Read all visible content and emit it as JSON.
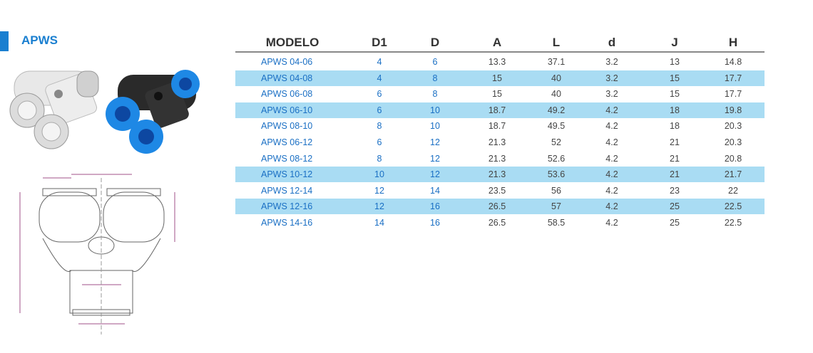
{
  "header": {
    "title": "APWS"
  },
  "table": {
    "columns": [
      "MODELO",
      "D1",
      "D",
      "A",
      "L",
      "d",
      "J",
      "H"
    ],
    "rows": [
      [
        "APWS 04-06",
        "4",
        "6",
        "13.3",
        "37.1",
        "3.2",
        "13",
        "14.8"
      ],
      [
        "APWS 04-08",
        "4",
        "8",
        "15",
        "40",
        "3.2",
        "15",
        "17.7"
      ],
      [
        "APWS 06-08",
        "6",
        "8",
        "15",
        "40",
        "3.2",
        "15",
        "17.7"
      ],
      [
        "APWS 06-10",
        "6",
        "10",
        "18.7",
        "49.2",
        "4.2",
        "18",
        "19.8"
      ],
      [
        "APWS 08-10",
        "8",
        "10",
        "18.7",
        "49.5",
        "4.2",
        "18",
        "20.3"
      ],
      [
        "APWS 06-12",
        "6",
        "12",
        "21.3",
        "52",
        "4.2",
        "21",
        "20.3"
      ],
      [
        "APWS 08-12",
        "8",
        "12",
        "21.3",
        "52.6",
        "4.2",
        "21",
        "20.8"
      ],
      [
        "APWS 10-12",
        "10",
        "12",
        "21.3",
        "53.6",
        "4.2",
        "21",
        "21.7"
      ],
      [
        "APWS 12-14",
        "12",
        "14",
        "23.5",
        "56",
        "4.2",
        "23",
        "22"
      ],
      [
        "APWS 12-16",
        "12",
        "16",
        "26.5",
        "57",
        "4.2",
        "25",
        "22.5"
      ],
      [
        "APWS 14-16",
        "14",
        "16",
        "26.5",
        "58.5",
        "4.2",
        "25",
        "22.5"
      ]
    ]
  }
}
